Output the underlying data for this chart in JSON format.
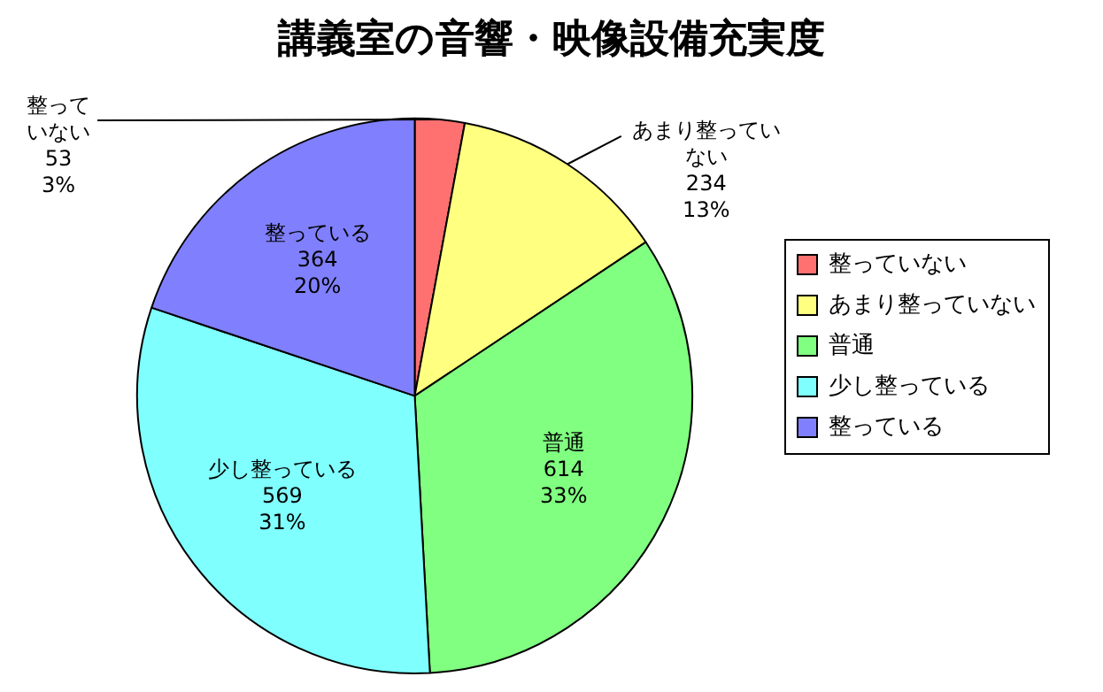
{
  "chart_data": {
    "type": "pie",
    "title": "講義室の音響・映像設備充実度",
    "categories": [
      "整っていない",
      "あまり整っていない",
      "普通",
      "少し整っている",
      "整っている"
    ],
    "values": [
      53,
      234,
      614,
      569,
      364
    ],
    "value_labels": [
      "53\n3%",
      "234\n13%",
      "614\n33%",
      "569\n31%",
      "364\n20%"
    ],
    "colors": [
      "#ff7070",
      "#ffff80",
      "#80ff80",
      "#80ffff",
      "#8080ff"
    ],
    "legend": "right"
  }
}
